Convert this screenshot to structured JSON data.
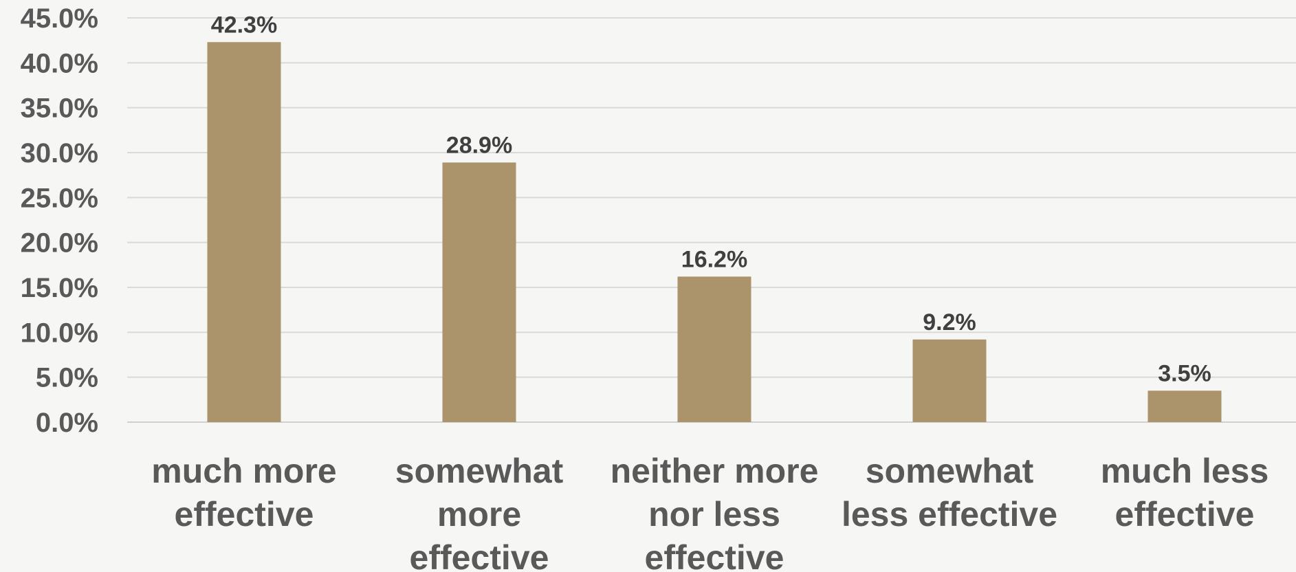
{
  "chart_data": {
    "type": "bar",
    "title": "",
    "xlabel": "",
    "ylabel": "",
    "categories": [
      [
        "much more",
        "effective"
      ],
      [
        "somewhat",
        "more",
        "effective"
      ],
      [
        "neither more",
        "nor less",
        "effective"
      ],
      [
        "somewhat",
        "less effective"
      ],
      [
        "much less",
        "effective"
      ]
    ],
    "values": [
      42.3,
      28.9,
      16.2,
      9.2,
      3.5
    ],
    "data_labels": [
      "42.3%",
      "28.9%",
      "16.2%",
      "9.2%",
      "3.5%"
    ],
    "ylim": [
      0,
      45
    ],
    "yticks": [
      0,
      5,
      10,
      15,
      20,
      25,
      30,
      35,
      40,
      45
    ],
    "ytick_labels": [
      "0.0%",
      "5.0%",
      "10.0%",
      "15.0%",
      "20.0%",
      "25.0%",
      "30.0%",
      "35.0%",
      "40.0%",
      "45.0%"
    ],
    "grid": true,
    "legend": "none",
    "colors": {
      "bar": "#ab936b",
      "background": "#f6f6f5"
    }
  }
}
